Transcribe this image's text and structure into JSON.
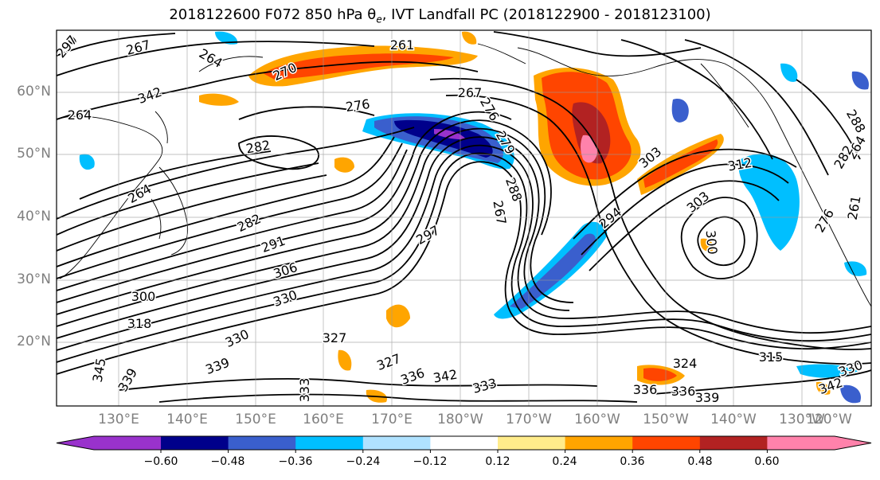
{
  "title": "2018122600 F072 850 hPa θe, IVT Landfall PC (2018122900 - 2018123100)",
  "lat_labels": [
    "60°N",
    "50°N",
    "40°N",
    "30°N",
    "20°N"
  ],
  "lon_labels": [
    "130°E",
    "140°E",
    "150°E",
    "160°E",
    "170°E",
    "180°W",
    "170°W",
    "160°W",
    "150°W",
    "140°W",
    "130°W",
    "120°W"
  ],
  "contour_labels": [
    "270",
    "267",
    "264",
    "261",
    "270",
    "276",
    "267",
    "282",
    "264",
    "264",
    "276",
    "279",
    "288",
    "282",
    "291",
    "306",
    "300",
    "318",
    "330",
    "297",
    "267",
    "294",
    "303",
    "303",
    "300",
    "312",
    "288",
    "342",
    "345",
    "339",
    "333",
    "336",
    "330",
    "339",
    "327",
    "327",
    "333",
    "336",
    "336",
    "339",
    "342",
    "324",
    "315",
    "330",
    "342",
    "264",
    "261",
    "276",
    "282",
    "297"
  ],
  "colorbar": {
    "ticks": [
      "−0.60",
      "−0.48",
      "−0.36",
      "−0.24",
      "−0.12",
      "0.12",
      "0.24",
      "0.36",
      "0.48",
      "0.60"
    ],
    "colors": [
      "#9932cc",
      "#00008b",
      "#3a5fcd",
      "#00bfff",
      "#b0e2ff",
      "#ffffff",
      "#ffec8b",
      "#ffa500",
      "#ff4500",
      "#b22222",
      "#ff82ab"
    ]
  }
}
